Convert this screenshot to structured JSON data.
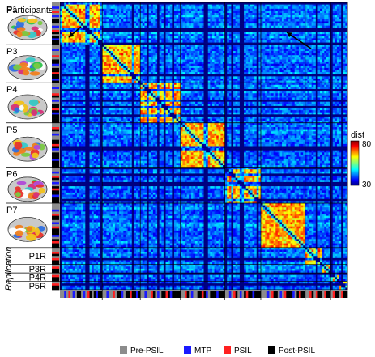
{
  "chart_data": {
    "type": "heatmap",
    "title": "",
    "header_label": "Participants",
    "replication_label": "Replication",
    "participants": [
      {
        "label": "P1",
        "n": 20,
        "brain": true,
        "group": "primary"
      },
      {
        "label": "P3",
        "n": 18,
        "brain": true,
        "group": "primary"
      },
      {
        "label": "P4",
        "n": 19,
        "brain": true,
        "group": "primary"
      },
      {
        "label": "P5",
        "n": 21,
        "brain": true,
        "group": "primary"
      },
      {
        "label": "P6",
        "n": 17,
        "brain": true,
        "group": "primary"
      },
      {
        "label": "P7",
        "n": 21,
        "brain": true,
        "group": "primary"
      },
      {
        "label": "P1R",
        "n": 8,
        "brain": false,
        "group": "replication"
      },
      {
        "label": "P3R",
        "n": 4,
        "brain": false,
        "group": "replication"
      },
      {
        "label": "P4R",
        "n": 4,
        "brain": false,
        "group": "replication"
      },
      {
        "label": "P5R",
        "n": 4,
        "brain": false,
        "group": "replication"
      }
    ],
    "session_conditions": [
      [
        "Pre-PSIL",
        "Pre-PSIL",
        "MTP",
        "Pre-PSIL",
        "PSIL",
        "Pre-PSIL",
        "MTP",
        "Pre-PSIL",
        "Post-PSIL",
        "Post-PSIL",
        "Pre-PSIL",
        "MTP",
        "Pre-PSIL",
        "PSIL",
        "Post-PSIL",
        "Pre-PSIL",
        "Post-PSIL",
        "MTP",
        "Post-PSIL",
        "Post-PSIL"
      ],
      [
        "Pre-PSIL",
        "Pre-PSIL",
        "MTP",
        "Pre-PSIL",
        "Pre-PSIL",
        "PSIL",
        "Pre-PSIL",
        "Post-PSIL",
        "Post-PSIL",
        "MTP",
        "Pre-PSIL",
        "Post-PSIL",
        "Post-PSIL",
        "PSIL",
        "Post-PSIL",
        "Post-PSIL",
        "MTP",
        "Post-PSIL"
      ],
      [
        "Pre-PSIL",
        "Pre-PSIL",
        "MTP",
        "Pre-PSIL",
        "Pre-PSIL",
        "PSIL",
        "Post-PSIL",
        "Pre-PSIL",
        "MTP",
        "Pre-PSIL",
        "Post-PSIL",
        "Post-PSIL",
        "PSIL",
        "Post-PSIL",
        "MTP",
        "Post-PSIL",
        "Post-PSIL",
        "Post-PSIL",
        "Post-PSIL"
      ],
      [
        "Pre-PSIL",
        "Pre-PSIL",
        "PSIL",
        "Post-PSIL",
        "Pre-PSIL",
        "MTP",
        "Pre-PSIL",
        "Pre-PSIL",
        "Post-PSIL",
        "Post-PSIL",
        "PSIL",
        "Post-PSIL",
        "MTP",
        "Pre-PSIL",
        "Post-PSIL",
        "Post-PSIL",
        "Post-PSIL",
        "MTP",
        "Post-PSIL",
        "Post-PSIL",
        "Post-PSIL"
      ],
      [
        "Pre-PSIL",
        "Pre-PSIL",
        "MTP",
        "Pre-PSIL",
        "PSIL",
        "Post-PSIL",
        "Pre-PSIL",
        "MTP",
        "Pre-PSIL",
        "Post-PSIL",
        "PSIL",
        "Post-PSIL",
        "Post-PSIL",
        "MTP",
        "Post-PSIL",
        "Post-PSIL",
        "Post-PSIL"
      ],
      [
        "Pre-PSIL",
        "Pre-PSIL",
        "Pre-PSIL",
        "MTP",
        "Pre-PSIL",
        "PSIL",
        "Post-PSIL",
        "Post-PSIL",
        "Pre-PSIL",
        "MTP",
        "Pre-PSIL",
        "PSIL",
        "Post-PSIL",
        "Post-PSIL",
        "Post-PSIL",
        "MTP",
        "Pre-PSIL",
        "Post-PSIL",
        "PSIL",
        "Post-PSIL",
        "Post-PSIL"
      ],
      [
        "Pre-PSIL",
        "Pre-PSIL",
        "PSIL",
        "Post-PSIL",
        "Pre-PSIL",
        "PSIL",
        "Post-PSIL",
        "Post-PSIL"
      ],
      [
        "Pre-PSIL",
        "PSIL",
        "Post-PSIL",
        "Post-PSIL"
      ],
      [
        "Pre-PSIL",
        "PSIL",
        "Post-PSIL",
        "Post-PSIL"
      ],
      [
        "Pre-PSIL",
        "PSIL",
        "Post-PSIL",
        "Post-PSIL"
      ]
    ],
    "colorbar": {
      "label": "dist",
      "min": 30,
      "max": 80,
      "ticks": [
        "80",
        "30"
      ],
      "colormap": "jet"
    },
    "within_participant_dist": 68,
    "between_participant_dist": 42,
    "legend": [
      {
        "label": "Pre-PSIL",
        "color": "#8c8c8c"
      },
      {
        "label": "MTP",
        "color": "#1a1aff"
      },
      {
        "label": "PSIL",
        "color": "#ff2020"
      },
      {
        "label": "Post-PSIL",
        "color": "#000000"
      }
    ]
  }
}
